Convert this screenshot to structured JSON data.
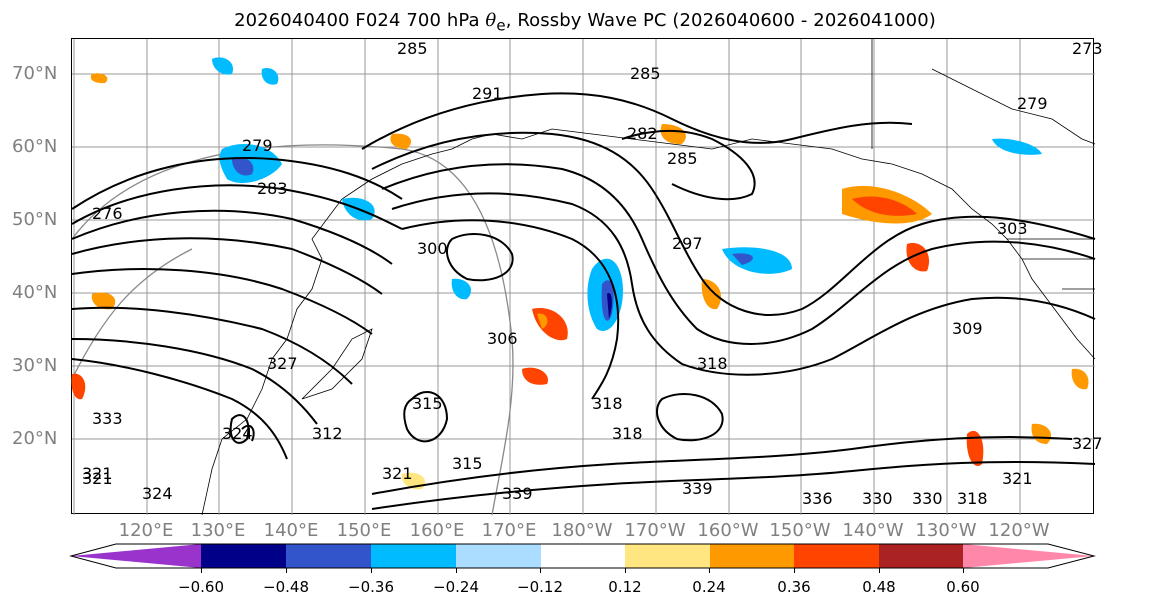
{
  "title": {
    "prefix": "2026040400 F024 700 hPa ",
    "symbol": "θ",
    "subscript": "e",
    "suffix": ", Rossby Wave PC (2026040600 - 2026041000)"
  },
  "latitude_labels": [
    "70°N",
    "60°N",
    "50°N",
    "40°N",
    "30°N",
    "20°N"
  ],
  "longitude_labels": [
    "120°E",
    "130°E",
    "140°E",
    "150°E",
    "160°E",
    "170°E",
    "180°W",
    "170°W",
    "160°W",
    "150°W",
    "140°W",
    "130°W",
    "120°W"
  ],
  "contour_labels": [
    "285",
    "285",
    "291",
    "282",
    "285",
    "279",
    "279",
    "283",
    "276",
    "300",
    "297",
    "303",
    "309",
    "306",
    "318",
    "318",
    "318",
    "315",
    "312",
    "324",
    "321",
    "321",
    "327",
    "333",
    "324",
    "339",
    "339",
    "336",
    "330",
    "330",
    "318",
    "321",
    "327",
    "315",
    "321",
    "273"
  ],
  "colorbar": {
    "colors": [
      "#9933cc",
      "#000088",
      "#3355cc",
      "#00bbff",
      "#aaddff",
      "#ffffff",
      "#ffe680",
      "#ff9900",
      "#ff4400",
      "#aa2222",
      "#ff88aa"
    ],
    "ticks": [
      "−0.60",
      "−0.48",
      "−0.36",
      "−0.24",
      "−0.12",
      "0.12",
      "0.24",
      "0.36",
      "0.48",
      "0.60"
    ]
  }
}
